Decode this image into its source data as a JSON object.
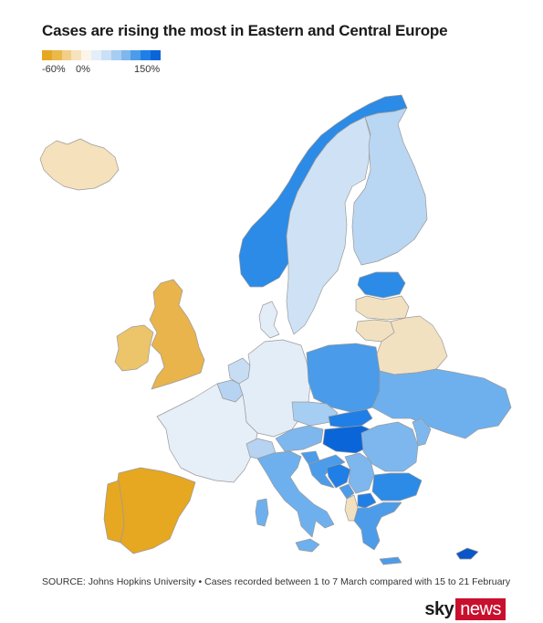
{
  "title": "Cases are rising the most in Eastern and Central Europe",
  "legend": {
    "min_label": "-60%",
    "zero_label": "0%",
    "max_label": "150%",
    "scale": [
      -0.6,
      0,
      1.5
    ],
    "colors": [
      "#e6a721",
      "#ebb84a",
      "#f1cf86",
      "#f6e3be",
      "#fbf5ea",
      "#e4eef9",
      "#c9e0f6",
      "#a6cdf2",
      "#7db7ee",
      "#4c9cea",
      "#1f7fe6",
      "#0a66d8"
    ]
  },
  "source": "SOURCE: Johns Hopkins University • Cases recorded between 1 to 7 March compared with 15 to 21 February",
  "logo": {
    "sky": "sky",
    "news": "news"
  },
  "regions": [
    {
      "name": "Iceland",
      "color": "#f5e1bb"
    },
    {
      "name": "Norway",
      "color": "#2b8be6"
    },
    {
      "name": "Sweden",
      "color": "#cfe2f5"
    },
    {
      "name": "Finland",
      "color": "#b9d6f3"
    },
    {
      "name": "Estonia",
      "color": "#2b8be6"
    },
    {
      "name": "Latvia",
      "color": "#f2e1c0"
    },
    {
      "name": "Lithuania",
      "color": "#f2e1c0"
    },
    {
      "name": "Belarus",
      "color": "#f2e1c0"
    },
    {
      "name": "United Kingdom",
      "color": "#e8b44b"
    },
    {
      "name": "Ireland",
      "color": "#ecc46a"
    },
    {
      "name": "Denmark",
      "color": "#e3edf8"
    },
    {
      "name": "Netherlands",
      "color": "#c7ddf4"
    },
    {
      "name": "Belgium",
      "color": "#b6d3f2"
    },
    {
      "name": "Germany",
      "color": "#e3edf8"
    },
    {
      "name": "Poland",
      "color": "#4a9be9"
    },
    {
      "name": "Ukraine",
      "color": "#6eb0ee"
    },
    {
      "name": "France",
      "color": "#e6eef8"
    },
    {
      "name": "Spain",
      "color": "#e6a721"
    },
    {
      "name": "Portugal",
      "color": "#e6a721"
    },
    {
      "name": "Switzerland",
      "color": "#b6d3f2"
    },
    {
      "name": "Austria",
      "color": "#7db7ee"
    },
    {
      "name": "Czechia",
      "color": "#a6cdf2"
    },
    {
      "name": "Slovakia",
      "color": "#1f7fe6"
    },
    {
      "name": "Hungary",
      "color": "#0a66d8"
    },
    {
      "name": "Italy",
      "color": "#6eb0ee"
    },
    {
      "name": "Slovenia",
      "color": "#4c9cea"
    },
    {
      "name": "Croatia",
      "color": "#4c9cea"
    },
    {
      "name": "Bosnia and Herzegovina",
      "color": "#1f7fe6"
    },
    {
      "name": "Serbia",
      "color": "#7db7ee"
    },
    {
      "name": "Romania",
      "color": "#7db7ee"
    },
    {
      "name": "Moldova",
      "color": "#7db7ee"
    },
    {
      "name": "Montenegro",
      "color": "#4c9cea"
    },
    {
      "name": "Albania",
      "color": "#f2e1c0"
    },
    {
      "name": "North Macedonia",
      "color": "#1f7fe6"
    },
    {
      "name": "Bulgaria",
      "color": "#2b8be6"
    },
    {
      "name": "Greece",
      "color": "#4c9cea"
    },
    {
      "name": "Cyprus",
      "color": "#0a55c8"
    }
  ]
}
